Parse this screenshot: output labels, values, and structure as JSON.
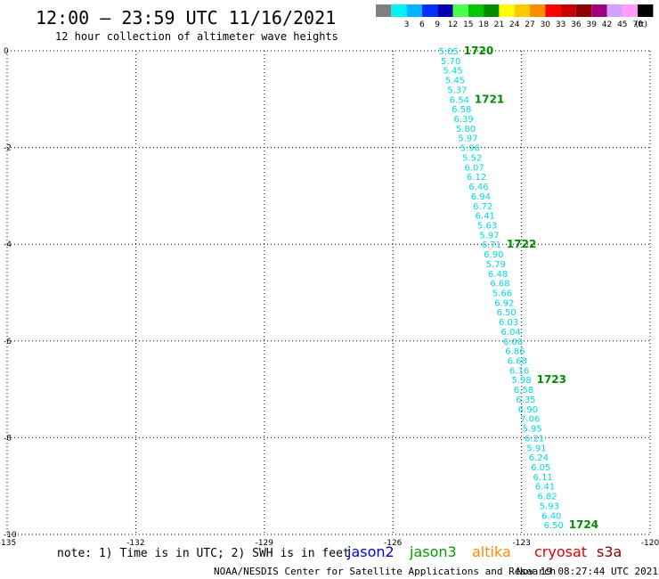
{
  "header": {
    "title": "12:00 – 23:59 UTC 11/16/2021",
    "subtitle": "12 hour collection of altimeter wave heights"
  },
  "legend": {
    "unit": "(ft)",
    "swatches": [
      {
        "color": "#7f7f7f",
        "label": ""
      },
      {
        "color": "#00f2f2",
        "label": "3"
      },
      {
        "color": "#00b7ff",
        "label": "6"
      },
      {
        "color": "#0030ff",
        "label": "9"
      },
      {
        "color": "#0000b0",
        "label": "12"
      },
      {
        "color": "#4cff4c",
        "label": "15"
      },
      {
        "color": "#00c800",
        "label": "18"
      },
      {
        "color": "#008c00",
        "label": "21"
      },
      {
        "color": "#ffff00",
        "label": "24"
      },
      {
        "color": "#ffc800",
        "label": "27"
      },
      {
        "color": "#ff8c00",
        "label": "30"
      },
      {
        "color": "#ff0000",
        "label": "33"
      },
      {
        "color": "#c80000",
        "label": "36"
      },
      {
        "color": "#8c0000",
        "label": "39"
      },
      {
        "color": "#a0007f",
        "label": "42"
      },
      {
        "color": "#d2a0ff",
        "label": "45"
      },
      {
        "color": "#ff9cff",
        "label": "70"
      },
      {
        "color": "#000000",
        "label": ""
      }
    ]
  },
  "chart_data": {
    "type": "scatter",
    "xlim": [
      -135,
      -120
    ],
    "ylim": [
      -10,
      0
    ],
    "x_ticks": [
      {
        "value": -135,
        "label": "-135"
      },
      {
        "value": -132,
        "label": "-132"
      },
      {
        "value": -129,
        "label": "-129"
      },
      {
        "value": -126,
        "label": "-126"
      },
      {
        "value": -123,
        "label": "-123"
      },
      {
        "value": -120,
        "label": "-120"
      }
    ],
    "y_ticks": [
      {
        "value": 0,
        "label": "0"
      },
      {
        "value": -2,
        "label": "-2"
      },
      {
        "value": -4,
        "label": "-4"
      },
      {
        "value": -6,
        "label": "-6"
      },
      {
        "value": -8,
        "label": "-8"
      },
      {
        "value": -10,
        "label": "-10"
      }
    ],
    "grid": true,
    "label_color": "#00d8e8",
    "series": [
      {
        "name": "jason3",
        "color": "#00e0e0",
        "points": [
          {
            "lon": -124.7,
            "lat": 0.0,
            "swh": "5.05"
          },
          {
            "lon": -124.65,
            "lat": -0.2,
            "swh": "5.70"
          },
          {
            "lon": -124.6,
            "lat": -0.4,
            "swh": "5.45"
          },
          {
            "lon": -124.55,
            "lat": -0.6,
            "swh": "5.45"
          },
          {
            "lon": -124.5,
            "lat": -0.8,
            "swh": "5.37"
          },
          {
            "lon": -124.45,
            "lat": -1.0,
            "swh": "6.54"
          },
          {
            "lon": -124.4,
            "lat": -1.2,
            "swh": "6.58"
          },
          {
            "lon": -124.35,
            "lat": -1.4,
            "swh": "6.39"
          },
          {
            "lon": -124.3,
            "lat": -1.6,
            "swh": "5.80"
          },
          {
            "lon": -124.25,
            "lat": -1.8,
            "swh": "5.97"
          },
          {
            "lon": -124.2,
            "lat": -2.0,
            "swh": "5.96"
          },
          {
            "lon": -124.15,
            "lat": -2.2,
            "swh": "5.52"
          },
          {
            "lon": -124.1,
            "lat": -2.4,
            "swh": "6.07"
          },
          {
            "lon": -124.05,
            "lat": -2.6,
            "swh": "6.12"
          },
          {
            "lon": -124.0,
            "lat": -2.8,
            "swh": "6.46"
          },
          {
            "lon": -123.95,
            "lat": -3.0,
            "swh": "6.94"
          },
          {
            "lon": -123.9,
            "lat": -3.2,
            "swh": "6.72"
          },
          {
            "lon": -123.85,
            "lat": -3.4,
            "swh": "6.41"
          },
          {
            "lon": -123.8,
            "lat": -3.6,
            "swh": "5.63"
          },
          {
            "lon": -123.75,
            "lat": -3.8,
            "swh": "5.97"
          },
          {
            "lon": -123.7,
            "lat": -4.0,
            "swh": "6.71"
          },
          {
            "lon": -123.65,
            "lat": -4.2,
            "swh": "6.90"
          },
          {
            "lon": -123.6,
            "lat": -4.4,
            "swh": "5.79"
          },
          {
            "lon": -123.55,
            "lat": -4.6,
            "swh": "6.48"
          },
          {
            "lon": -123.5,
            "lat": -4.8,
            "swh": "6.68"
          },
          {
            "lon": -123.45,
            "lat": -5.0,
            "swh": "5.66"
          },
          {
            "lon": -123.4,
            "lat": -5.2,
            "swh": "6.92"
          },
          {
            "lon": -123.35,
            "lat": -5.4,
            "swh": "6.50"
          },
          {
            "lon": -123.3,
            "lat": -5.6,
            "swh": "6.03"
          },
          {
            "lon": -123.25,
            "lat": -5.8,
            "swh": "6.04"
          },
          {
            "lon": -123.2,
            "lat": -6.0,
            "swh": "6.08"
          },
          {
            "lon": -123.15,
            "lat": -6.2,
            "swh": "6.86"
          },
          {
            "lon": -123.1,
            "lat": -6.4,
            "swh": "6.68"
          },
          {
            "lon": -123.05,
            "lat": -6.6,
            "swh": "6.16"
          },
          {
            "lon": -123.0,
            "lat": -6.8,
            "swh": "5.98"
          },
          {
            "lon": -122.95,
            "lat": -7.0,
            "swh": "6.58"
          },
          {
            "lon": -122.9,
            "lat": -7.2,
            "swh": "6.35"
          },
          {
            "lon": -122.85,
            "lat": -7.4,
            "swh": "6.90"
          },
          {
            "lon": -122.8,
            "lat": -7.6,
            "swh": "7.06"
          },
          {
            "lon": -122.75,
            "lat": -7.8,
            "swh": "5.95"
          },
          {
            "lon": -122.7,
            "lat": -8.0,
            "swh": "6.21"
          },
          {
            "lon": -122.65,
            "lat": -8.2,
            "swh": "5.91"
          },
          {
            "lon": -122.6,
            "lat": -8.4,
            "swh": "6.24"
          },
          {
            "lon": -122.55,
            "lat": -8.6,
            "swh": "6.05"
          },
          {
            "lon": -122.5,
            "lat": -8.8,
            "swh": "6.11"
          },
          {
            "lon": -122.45,
            "lat": -9.0,
            "swh": "6.41"
          },
          {
            "lon": -122.4,
            "lat": -9.2,
            "swh": "6.82"
          },
          {
            "lon": -122.35,
            "lat": -9.4,
            "swh": "5.93"
          },
          {
            "lon": -122.3,
            "lat": -9.6,
            "swh": "6.40"
          },
          {
            "lon": -122.25,
            "lat": -9.8,
            "swh": "6.50"
          }
        ],
        "time_labels": [
          {
            "lon": -124.7,
            "lat": 0.0,
            "label": "1720"
          },
          {
            "lon": -124.45,
            "lat": -1.0,
            "label": "1721"
          },
          {
            "lon": -123.7,
            "lat": -4.0,
            "label": "1722"
          },
          {
            "lon": -123.0,
            "lat": -6.8,
            "label": "1723"
          },
          {
            "lon": -122.25,
            "lat": -9.8,
            "label": "1724"
          }
        ]
      }
    ]
  },
  "footer": {
    "note": "note: 1) Time is in UTC; 2) SWH is in feet",
    "credit": "NOAA/NESDIS Center for Satellite Applications and Research",
    "timestamp": "Nov 19 08:27:44 UTC 2021",
    "satellites": [
      {
        "name": "jason2",
        "color": "#0000dd"
      },
      {
        "name": "jason3",
        "color": "#00a000"
      },
      {
        "name": "altika",
        "color": "#ff8c00"
      },
      {
        "name": "cryosat",
        "color": "#dd0000"
      },
      {
        "name": "s3a",
        "color": "#8b0000"
      }
    ]
  }
}
